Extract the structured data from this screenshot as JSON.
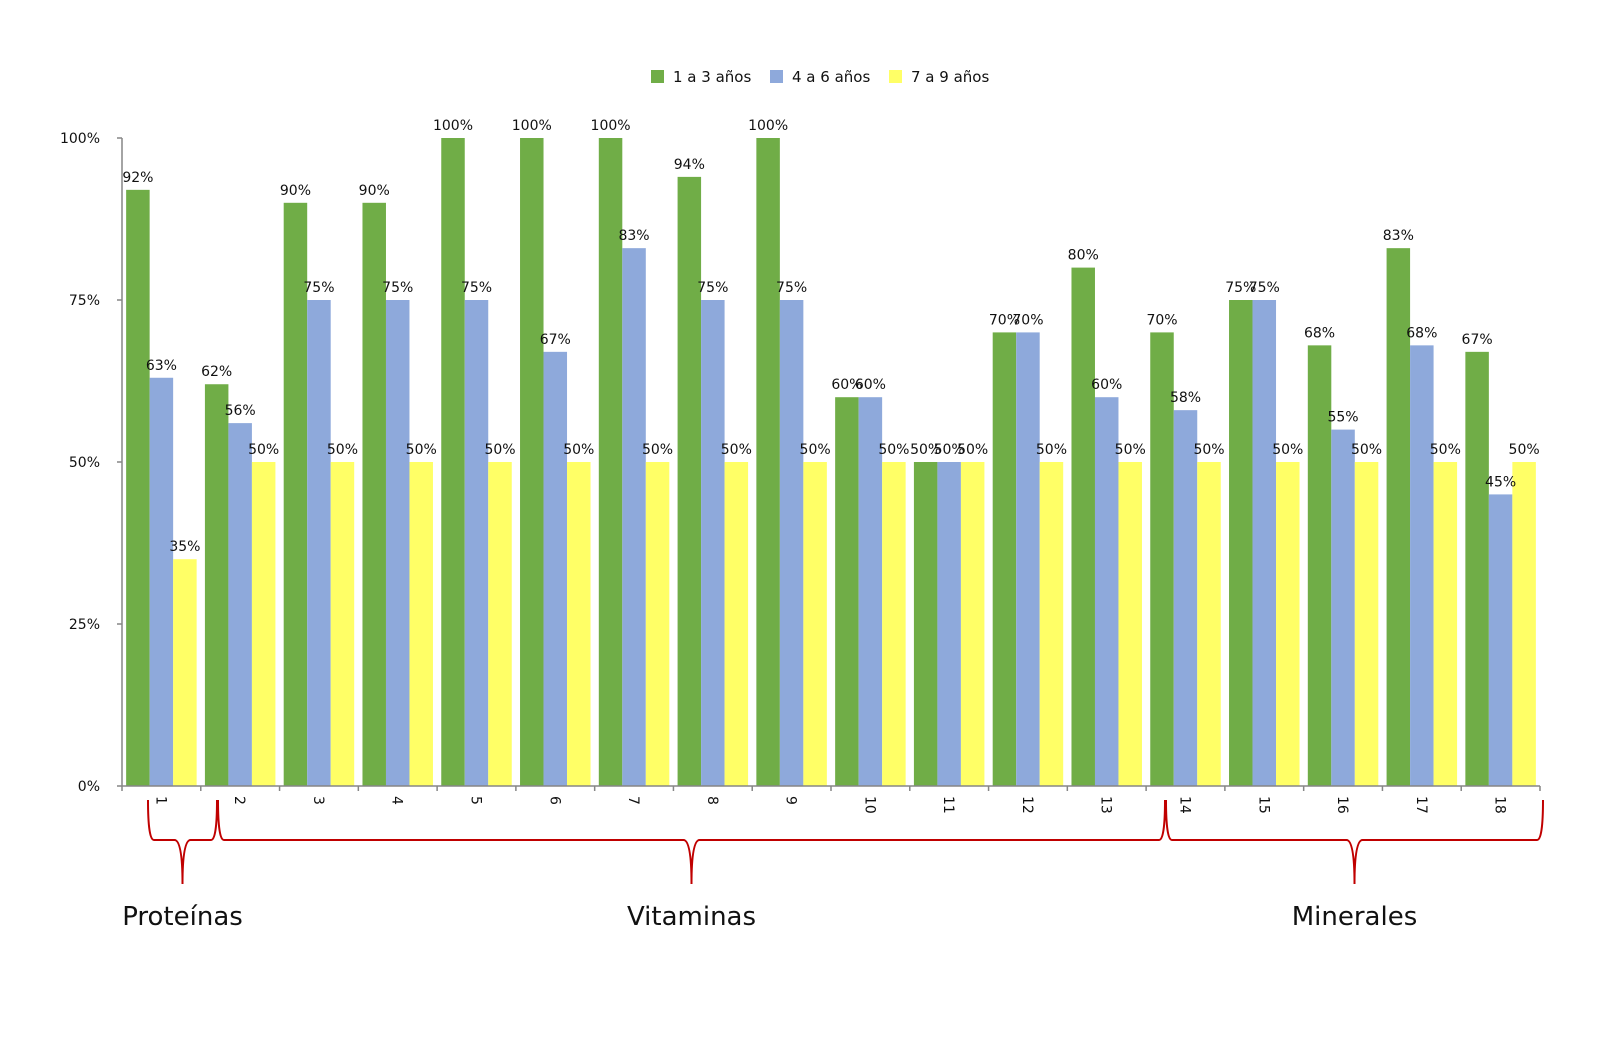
{
  "chart_data": {
    "type": "bar",
    "title": "",
    "xlabel": "",
    "ylabel": "",
    "ylim": [
      0,
      100
    ],
    "yticks": [
      "0%",
      "25%",
      "50%",
      "75%",
      "100%"
    ],
    "ytick_values": [
      0,
      25,
      50,
      75,
      100
    ],
    "grid": false,
    "legend_position": "top-center",
    "categories": [
      "1",
      "2",
      "3",
      "4",
      "5",
      "6",
      "7",
      "8",
      "9",
      "10",
      "11",
      "12",
      "13",
      "14",
      "15",
      "16",
      "17",
      "18"
    ],
    "series": [
      {
        "name": "1 a 3 años",
        "color": "#70AD47",
        "values": [
          92,
          62,
          90,
          90,
          100,
          100,
          100,
          94,
          100,
          60,
          50,
          70,
          80,
          70,
          75,
          68,
          83,
          67
        ]
      },
      {
        "name": "4 a 6 años",
        "color": "#8EA9DB",
        "values": [
          63,
          56,
          75,
          75,
          75,
          67,
          83,
          75,
          75,
          60,
          50,
          70,
          60,
          58,
          75,
          55,
          68,
          45
        ]
      },
      {
        "name": "7 a 9 años",
        "color": "#FFFF66",
        "values": [
          35,
          50,
          50,
          50,
          50,
          50,
          50,
          50,
          50,
          50,
          50,
          50,
          50,
          50,
          50,
          50,
          50,
          50
        ]
      }
    ],
    "value_label_suffix": "%",
    "annotations": {
      "bracket_color": "#C00000",
      "groups": [
        {
          "label": "Proteínas",
          "from": 1,
          "to": 1
        },
        {
          "label": "Vitaminas",
          "from": 2,
          "to": 13
        },
        {
          "label": "Minerales",
          "from": 14,
          "to": 18
        }
      ]
    }
  }
}
